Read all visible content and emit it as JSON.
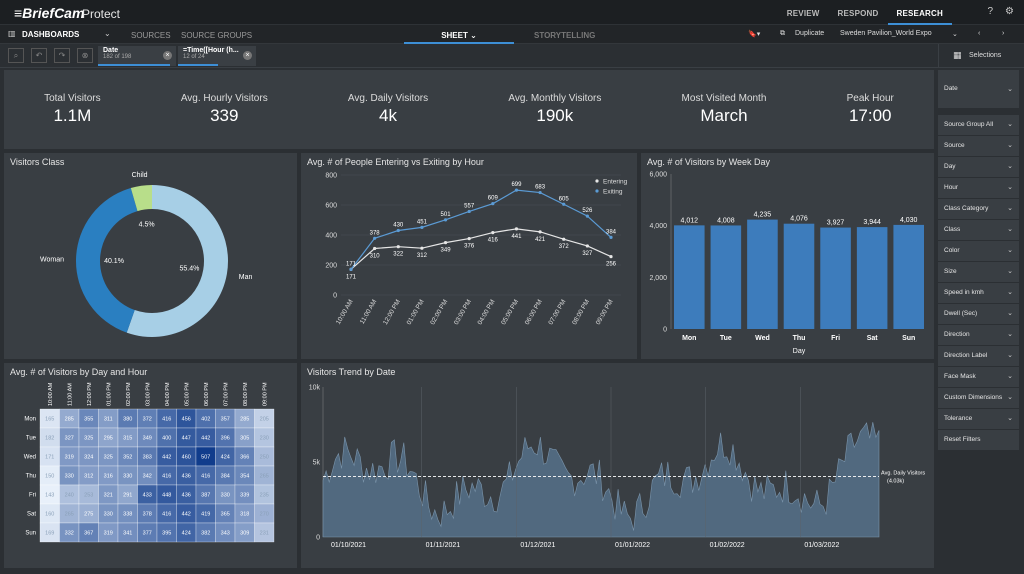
{
  "app": {
    "logo": "≡BriefCam",
    "product": "Protect"
  },
  "topnav": [
    "REVIEW",
    "RESPOND",
    "RESEARCH"
  ],
  "topnav_active": "RESEARCH",
  "top_icons": [
    "help-icon",
    "gear-icon"
  ],
  "nav": {
    "dashboards": "DASHBOARDS",
    "sources": "SOURCES",
    "source_groups": "SOURCE GROUPS",
    "sheet": "SHEET",
    "storytelling": "STORYTELLING",
    "duplicate": "Duplicate",
    "workspace": "Sweden Pavilion_World Expo"
  },
  "filters": [
    {
      "label": "Date",
      "sub": "182 of 198"
    },
    {
      "label": "=Time([Hour (h...",
      "sub": "12 of 24"
    }
  ],
  "selections_label": "Selections",
  "kpis": [
    {
      "label": "Total Visitors",
      "value": "1.1M"
    },
    {
      "label": "Avg. Hourly Visitors",
      "value": "339"
    },
    {
      "label": "Avg. Daily Visitors",
      "value": "4k"
    },
    {
      "label": "Avg. Monthly Visitors",
      "value": "190k"
    },
    {
      "label": "Most Visited Month",
      "value": "March"
    },
    {
      "label": "Peak Hour",
      "value": "17:00"
    }
  ],
  "sidebar": {
    "top": "Date",
    "items": [
      "Source Group All",
      "Source",
      "Day",
      "Hour",
      "Class Category",
      "Class",
      "Color",
      "Size",
      "Speed in kmh",
      "Dwell (Sec)",
      "Direction",
      "Direction Label",
      "Face Mask",
      "Custom Dimensions",
      "Tolerance",
      "Reset Filters"
    ]
  },
  "titles": {
    "donut": "Visitors Class",
    "line": "Avg. # of People Entering vs Exiting by Hour",
    "bar": "Avg. # of Visitors by Week Day",
    "heat": "Avg. # of Visitors by Day and Hour",
    "trend": "Visitors Trend by Date"
  },
  "colors": {
    "accent": "#3d8fd6",
    "man": "#a7cfe6",
    "woman": "#2a7fc1",
    "child": "#b8de8a",
    "bar": "#3d7cbc",
    "trend": "#56718a"
  },
  "chart_data": [
    {
      "type": "pie",
      "categories": [
        "Man",
        "Woman",
        "Child"
      ],
      "values": [
        55.4,
        40.1,
        4.5
      ],
      "labels": [
        "55.4%",
        "40.1%",
        "4.5%"
      ]
    },
    {
      "type": "line",
      "categories": [
        "10:00 AM",
        "11:00 AM",
        "12:00 PM",
        "01:00 PM",
        "02:00 PM",
        "03:00 PM",
        "04:00 PM",
        "05:00 PM",
        "06:00 PM",
        "07:00 PM",
        "08:00 PM",
        "09:00 PM"
      ],
      "series": [
        {
          "name": "Entering",
          "values": [
            171,
            310,
            322,
            312,
            349,
            376,
            416,
            441,
            421,
            372,
            327,
            256
          ]
        },
        {
          "name": "Exiting",
          "values": [
            171,
            378,
            430,
            451,
            501,
            557,
            609,
            699,
            683,
            605,
            526,
            384
          ]
        }
      ],
      "yticks": [
        "0",
        "200",
        "400",
        "600",
        "800"
      ],
      "ylim": [
        0,
        800
      ],
      "legend": "top-right"
    },
    {
      "type": "bar",
      "categories": [
        "Mon",
        "Tue",
        "Wed",
        "Thu",
        "Fri",
        "Sat",
        "Sun"
      ],
      "values": [
        4012,
        4008,
        4235,
        4076,
        3927,
        3944,
        4030
      ],
      "labels": [
        "4,012",
        "4,008",
        "4,235",
        "4,076",
        "3,927",
        "3,944",
        "4,030"
      ],
      "yticks": [
        "0",
        "2,000",
        "4,000",
        "6,000"
      ],
      "ylim": [
        0,
        6000
      ],
      "xlabel": "Day"
    },
    {
      "type": "heatmap",
      "columns": [
        "10:00 AM",
        "11:00 AM",
        "12:00 PM",
        "01:00 PM",
        "02:00 PM",
        "03:00 PM",
        "04:00 PM",
        "05:00 PM",
        "06:00 PM",
        "07:00 PM",
        "08:00 PM",
        "09:00 PM"
      ],
      "rows": [
        "Mon",
        "Tue",
        "Wed",
        "Thu",
        "Fri",
        "Sat",
        "Sun"
      ],
      "values": [
        [
          165,
          285,
          355,
          311,
          380,
          372,
          416,
          456,
          402,
          357,
          285,
          205
        ],
        [
          182,
          327,
          325,
          295,
          315,
          349,
          400,
          447,
          442,
          396,
          305,
          230
        ],
        [
          171,
          319,
          324,
          325,
          352,
          383,
          442,
          460,
          507,
          424,
          366,
          250
        ],
        [
          150,
          330,
          312,
          316,
          330,
          342,
          416,
          436,
          416,
          384,
          354,
          265
        ],
        [
          143,
          240,
          253,
          321,
          291,
          433,
          448,
          436,
          387,
          330,
          339,
          235
        ],
        [
          160,
          265,
          275,
          330,
          338,
          378,
          416,
          442,
          419,
          365,
          318,
          270
        ],
        [
          169,
          332,
          367,
          319,
          341,
          377,
          395,
          424,
          382,
          343,
          309,
          231
        ]
      ]
    },
    {
      "type": "area",
      "x": [
        "01/10/2021",
        "01/11/2021",
        "01/12/2021",
        "01/01/2022",
        "01/02/2022",
        "01/03/2022"
      ],
      "yticks": [
        "0",
        "5k",
        "10k"
      ],
      "ylim": [
        0,
        10000
      ],
      "reference": {
        "label": "Avg. Daily Visitors",
        "value_label": "(4.03k)",
        "value": 4030
      }
    }
  ]
}
